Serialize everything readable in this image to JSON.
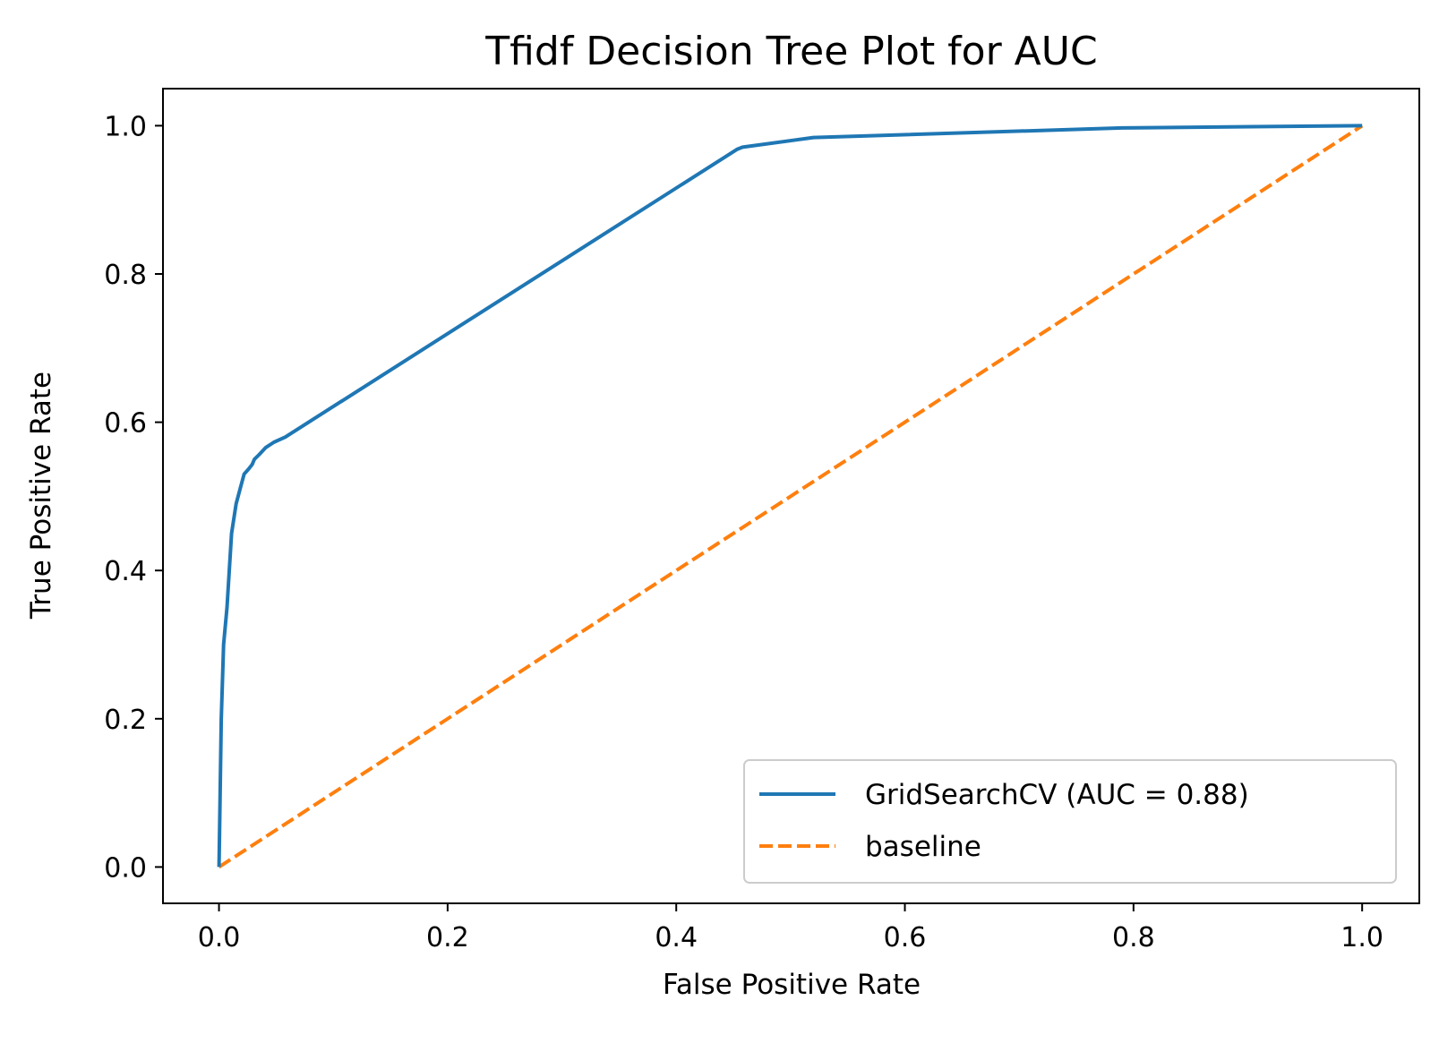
{
  "chart_data": {
    "type": "line",
    "title": "Tfidf Decision Tree Plot for AUC",
    "xlabel": "False Positive Rate",
    "ylabel": "True Positive Rate",
    "xlim": [
      -0.049,
      1.05
    ],
    "ylim": [
      -0.049,
      1.05
    ],
    "xticks": [
      "0.0",
      "0.2",
      "0.4",
      "0.6",
      "0.8",
      "1.0"
    ],
    "yticks": [
      "0.0",
      "0.2",
      "0.4",
      "0.6",
      "0.8",
      "1.0"
    ],
    "grid": false,
    "legend_position": "lower-right",
    "series": [
      {
        "name": "GridSearchCV (AUC = 0.88)",
        "color": "#1f77b4",
        "style": "solid",
        "x": [
          0.0,
          0.002,
          0.004,
          0.007,
          0.011,
          0.015,
          0.019,
          0.022,
          0.026,
          0.029,
          0.031,
          0.035,
          0.041,
          0.048,
          0.058,
          0.453,
          0.458,
          0.52,
          0.79,
          1.0
        ],
        "y": [
          0.0,
          0.2,
          0.3,
          0.35,
          0.45,
          0.49,
          0.513,
          0.53,
          0.537,
          0.543,
          0.55,
          0.556,
          0.566,
          0.573,
          0.58,
          0.968,
          0.971,
          0.984,
          0.997,
          1.0
        ]
      },
      {
        "name": "baseline",
        "color": "#ff7f0e",
        "style": "dashed",
        "x": [
          0.0,
          1.0
        ],
        "y": [
          0.0,
          1.0
        ]
      }
    ]
  }
}
